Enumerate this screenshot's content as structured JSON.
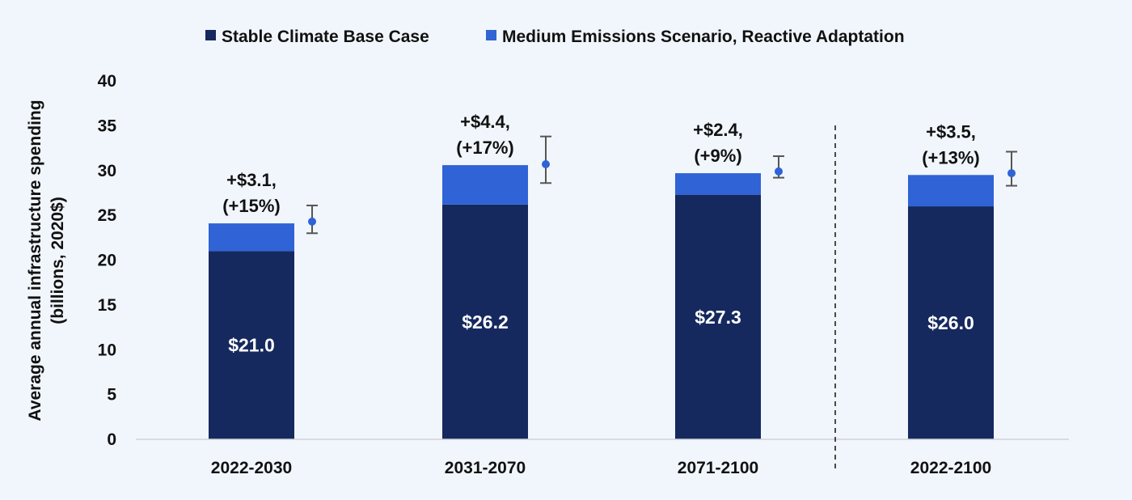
{
  "chart_data": {
    "type": "bar",
    "stacked": true,
    "categories": [
      "2022-2030",
      "2031-2070",
      "2071-2100",
      "2022-2100"
    ],
    "series": [
      {
        "name": "Stable Climate Base Case",
        "color": "#15295e",
        "values": [
          21.0,
          26.2,
          27.3,
          26.0
        ],
        "labels": [
          "$21.0",
          "$26.2",
          "$27.3",
          "$26.0"
        ]
      },
      {
        "name": "Medium Emissions Scenario, Reactive Adaptation",
        "color": "#2f63d6",
        "values": [
          3.1,
          4.4,
          2.4,
          3.5
        ],
        "labels": [
          [
            "+$3.1,",
            "(+15%)"
          ],
          [
            "+$4.4,",
            "(+17%)"
          ],
          [
            "+$2.4,",
            "(+9%)"
          ],
          [
            "+$3.5,",
            "(+13%)"
          ]
        ]
      }
    ],
    "error_points": [
      {
        "value": 24.3,
        "low": 23.0,
        "high": 26.1
      },
      {
        "value": 30.7,
        "low": 28.6,
        "high": 33.8
      },
      {
        "value": 29.9,
        "low": 29.2,
        "high": 31.6
      },
      {
        "value": 29.7,
        "low": 28.3,
        "high": 32.1
      }
    ],
    "error_color": "#2f63d6",
    "ylabel_lines": [
      "Average annual infrastructure spending",
      "(billions, 2020$)"
    ],
    "ylim": [
      0,
      40
    ],
    "yticks": [
      "0",
      "5",
      "10",
      "15",
      "20",
      "25",
      "30",
      "35",
      "40"
    ],
    "grid": false,
    "legend": "top-center",
    "separator_before_category": "2022-2100"
  }
}
